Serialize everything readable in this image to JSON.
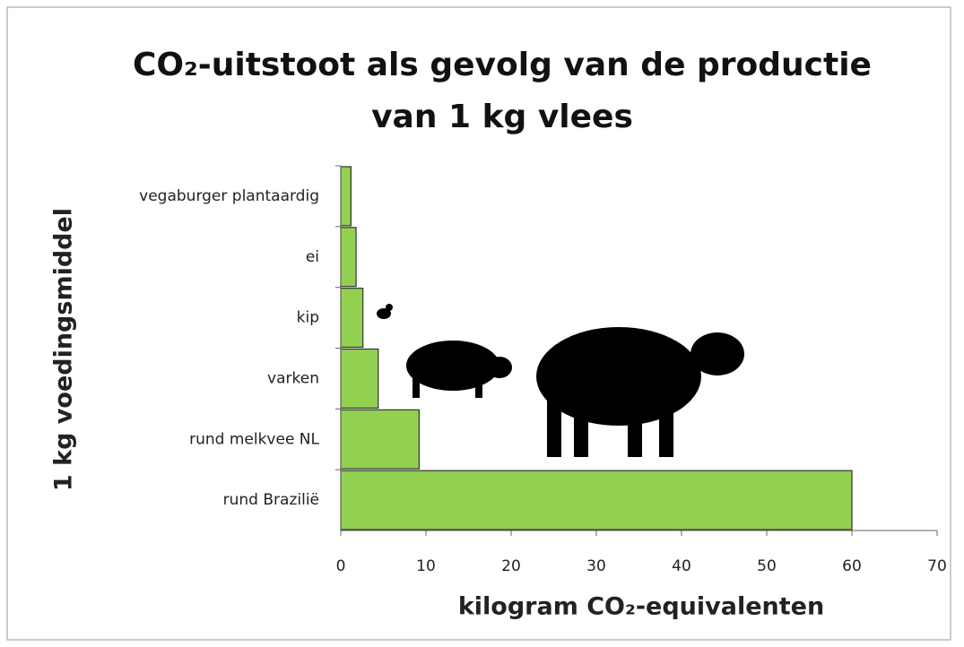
{
  "chart_data": {
    "type": "bar",
    "orientation": "horizontal",
    "title": "CO₂-uitstoot als gevolg van de productie van 1 kg vlees",
    "x_label": "kilogram CO₂-equivalenten",
    "y_label": "1 kg voedingsmiddel",
    "categories": [
      "vegaburger plantaardig",
      "ei",
      "kip",
      "varken",
      "rund melkvee NL",
      "rund Brazilië"
    ],
    "values": [
      1.2,
      1.8,
      2.6,
      4.4,
      9.2,
      60
    ],
    "color": "#92d050",
    "xlim": [
      0,
      70
    ],
    "xticks": [
      0,
      10,
      20,
      30,
      40,
      50,
      60,
      70
    ]
  }
}
